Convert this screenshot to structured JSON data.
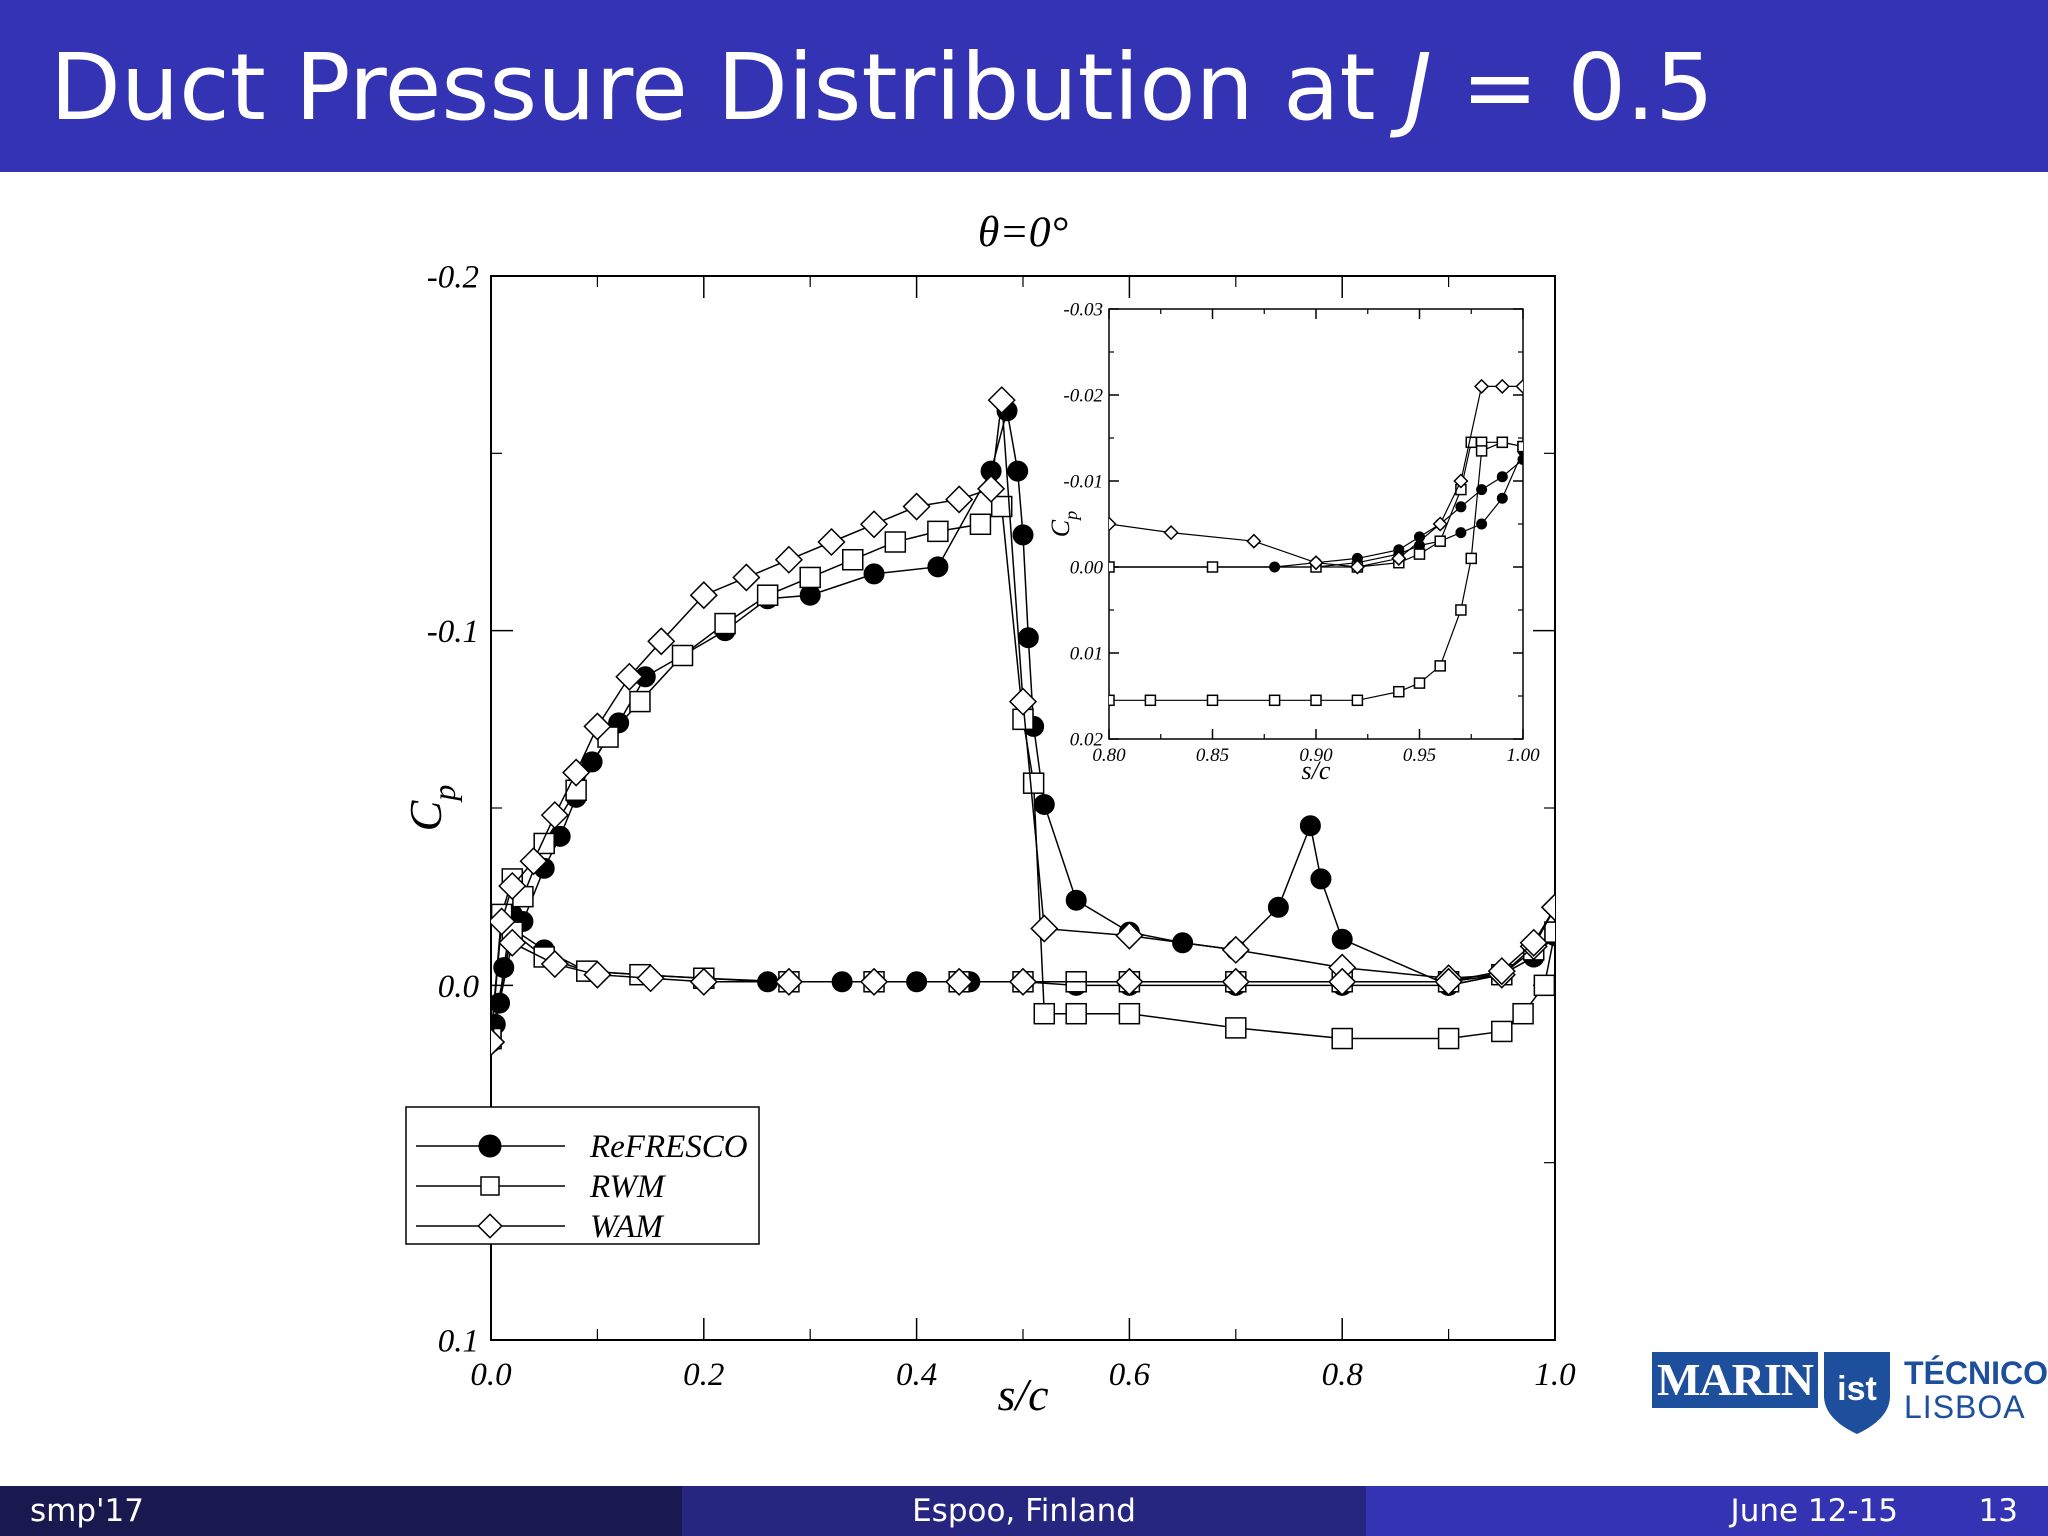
{
  "slide": {
    "title_prefix": "Duct Pressure Distribution at ",
    "title_var": "J",
    "title_suffix": " = 0.5",
    "page_number": "13"
  },
  "footer": {
    "left": "smp'17",
    "center": "Espoo, Finland",
    "date": "June 12-15",
    "page": "13"
  },
  "logos": {
    "marin": "MARIN",
    "tecnico": "TÉCNICO",
    "lisboa": "LISBOA"
  },
  "colors": {
    "title_bar": "#3333b3",
    "footer_left": "#191950",
    "footer_mid": "#262680",
    "footer_right": "#3333b3",
    "logo_blue": "#1d4f9c"
  },
  "chart_data": [
    {
      "type": "line",
      "title": "θ=0°",
      "xlabel": "s/c",
      "ylabel": "Cp",
      "xlim": [
        0.0,
        1.0
      ],
      "ylim": [
        0.1,
        -0.2
      ],
      "y_inverted": true,
      "xticks": [
        "0.0",
        "0.2",
        "0.4",
        "0.6",
        "0.8",
        "1.0"
      ],
      "yticks": [
        "-0.2",
        "-0.1",
        "0.0",
        "0.1"
      ],
      "legend": {
        "placement": "lower-left",
        "entries": [
          "ReFRESCO",
          "RWM",
          "WAM"
        ]
      },
      "series": [
        {
          "name": "ReFRESCO",
          "marker": "filled-circle",
          "upper_x": [
            0.0,
            0.004,
            0.008,
            0.012,
            0.02,
            0.03,
            0.05,
            0.065,
            0.08,
            0.095,
            0.12,
            0.145,
            0.18,
            0.22,
            0.26,
            0.3,
            0.36,
            0.42,
            0.47,
            0.485,
            0.495,
            0.5,
            0.505,
            0.51,
            0.52,
            0.55,
            0.6,
            0.65,
            0.7,
            0.74,
            0.7701,
            0.78,
            0.8,
            0.9,
            0.95,
            0.98,
            1.0
          ],
          "upper_y": [
            0.016,
            0.011,
            0.005,
            -0.005,
            -0.02,
            -0.018,
            -0.033,
            -0.042,
            -0.053,
            -0.063,
            -0.074,
            -0.087,
            -0.093,
            -0.1,
            -0.109,
            -0.11,
            -0.116,
            -0.118,
            -0.145,
            -0.162,
            -0.145,
            -0.127,
            -0.098,
            -0.073,
            -0.051,
            -0.024,
            -0.015,
            -0.012,
            -0.01,
            -0.022,
            -0.045,
            -0.03,
            -0.013,
            0.0,
            -0.003,
            -0.008,
            -0.014
          ],
          "lower_x": [
            0.0,
            0.02,
            0.05,
            0.09,
            0.14,
            0.2,
            0.26,
            0.33,
            0.4,
            0.45,
            0.5,
            0.55,
            0.6,
            0.7,
            0.8,
            0.9,
            0.95,
            0.98,
            1.0
          ],
          "lower_y": [
            0.016,
            -0.016,
            -0.01,
            -0.004,
            -0.003,
            -0.002,
            -0.001,
            -0.001,
            -0.001,
            -0.001,
            -0.001,
            0.0,
            0.0,
            0.0,
            0.0,
            0.0,
            -0.003,
            -0.008,
            -0.014
          ]
        },
        {
          "name": "RWM",
          "marker": "open-square",
          "upper_x": [
            0.0,
            0.01,
            0.02,
            0.03,
            0.05,
            0.08,
            0.11,
            0.14,
            0.18,
            0.22,
            0.26,
            0.3,
            0.34,
            0.38,
            0.42,
            0.46,
            0.48,
            0.5,
            0.51,
            0.52,
            0.55,
            0.6,
            0.7,
            0.8,
            0.9,
            0.95,
            0.97,
            0.99,
            1.0
          ],
          "upper_y": [
            0.015,
            -0.02,
            -0.03,
            -0.025,
            -0.04,
            -0.055,
            -0.07,
            -0.08,
            -0.093,
            -0.102,
            -0.11,
            -0.115,
            -0.12,
            -0.125,
            -0.128,
            -0.13,
            -0.135,
            -0.075,
            -0.057,
            0.008,
            0.008,
            0.008,
            0.012,
            0.015,
            0.015,
            0.013,
            0.008,
            0.0,
            -0.015
          ],
          "lower_x": [
            0.0,
            0.02,
            0.05,
            0.09,
            0.14,
            0.2,
            0.28,
            0.36,
            0.44,
            0.5,
            0.55,
            0.6,
            0.7,
            0.8,
            0.9,
            0.95,
            0.98,
            1.0
          ],
          "lower_y": [
            0.015,
            -0.015,
            -0.008,
            -0.004,
            -0.003,
            -0.002,
            -0.001,
            -0.001,
            -0.001,
            -0.001,
            -0.001,
            -0.001,
            -0.001,
            -0.001,
            -0.001,
            -0.003,
            -0.01,
            -0.015
          ]
        },
        {
          "name": "WAM",
          "marker": "open-diamond",
          "upper_x": [
            0.0,
            0.01,
            0.02,
            0.04,
            0.06,
            0.08,
            0.1,
            0.13,
            0.16,
            0.2,
            0.24,
            0.28,
            0.32,
            0.36,
            0.4,
            0.44,
            0.47,
            0.48,
            0.5,
            0.52,
            0.6,
            0.7,
            0.8,
            0.9,
            0.95,
            0.98,
            1.0
          ],
          "upper_y": [
            0.016,
            -0.018,
            -0.028,
            -0.035,
            -0.048,
            -0.06,
            -0.073,
            -0.087,
            -0.097,
            -0.11,
            -0.115,
            -0.12,
            -0.125,
            -0.13,
            -0.135,
            -0.137,
            -0.14,
            -0.165,
            -0.08,
            -0.016,
            -0.014,
            -0.01,
            -0.005,
            -0.002,
            -0.003,
            -0.011,
            -0.022
          ],
          "lower_x": [
            0.0,
            0.02,
            0.06,
            0.1,
            0.15,
            0.2,
            0.28,
            0.36,
            0.44,
            0.5,
            0.6,
            0.7,
            0.8,
            0.9,
            0.95,
            0.98,
            1.0
          ],
          "lower_y": [
            0.016,
            -0.012,
            -0.006,
            -0.003,
            -0.002,
            -0.001,
            -0.001,
            -0.001,
            -0.001,
            -0.001,
            -0.001,
            -0.001,
            -0.001,
            -0.001,
            -0.004,
            -0.012,
            -0.022
          ]
        }
      ]
    },
    {
      "type": "line",
      "title": "",
      "xlabel": "s/c",
      "ylabel": "Cp",
      "xlim": [
        0.8,
        1.0
      ],
      "ylim": [
        0.02,
        -0.03
      ],
      "y_inverted": true,
      "xticks": [
        "0.80",
        "0.85",
        "0.90",
        "0.95",
        "1.00"
      ],
      "yticks": [
        "-0.03",
        "-0.02",
        "-0.01",
        "0.00",
        "0.01",
        "0.02"
      ],
      "series": [
        {
          "name": "ReFRESCO",
          "marker": "filled-circle",
          "upper_x": [
            0.8,
            0.85,
            0.88,
            0.9,
            0.92,
            0.94,
            0.95,
            0.96,
            0.97,
            0.98,
            0.99,
            1.0
          ],
          "upper_y": [
            0.0,
            0.0,
            0.0,
            -0.0005,
            -0.001,
            -0.002,
            -0.0035,
            -0.005,
            -0.007,
            -0.009,
            -0.0105,
            -0.0125
          ],
          "lower_x": [
            0.8,
            0.85,
            0.9,
            0.92,
            0.94,
            0.95,
            0.96,
            0.97,
            0.98,
            0.99,
            1.0
          ],
          "lower_y": [
            0.0,
            0.0,
            0.0,
            -0.0005,
            -0.0015,
            -0.0025,
            -0.003,
            -0.004,
            -0.005,
            -0.008,
            -0.0135
          ]
        },
        {
          "name": "RWM",
          "marker": "open-square",
          "upper_x": [
            0.8,
            0.85,
            0.9,
            0.92,
            0.94,
            0.95,
            0.96,
            0.97,
            0.975,
            0.98,
            0.99,
            1.0
          ],
          "upper_y": [
            0.0,
            0.0,
            0.0,
            0.0,
            -0.0005,
            -0.0015,
            -0.003,
            -0.009,
            -0.0145,
            -0.0145,
            -0.0145,
            -0.014
          ],
          "lower_x": [
            0.8,
            0.82,
            0.85,
            0.88,
            0.9,
            0.92,
            0.94,
            0.95,
            0.96,
            0.97,
            0.975,
            0.98,
            0.99,
            1.0
          ],
          "lower_y": [
            0.0155,
            0.0155,
            0.0155,
            0.0155,
            0.0155,
            0.0155,
            0.0145,
            0.0135,
            0.0115,
            0.005,
            -0.001,
            -0.0135,
            -0.0145,
            -0.014
          ]
        },
        {
          "name": "WAM",
          "marker": "open-diamond",
          "x": [
            0.8,
            0.83,
            0.87,
            0.9,
            0.92,
            0.94,
            0.96,
            0.97,
            0.98,
            0.99,
            1.0
          ],
          "y": [
            -0.005,
            -0.004,
            -0.003,
            -0.0005,
            0.0,
            -0.001,
            -0.005,
            -0.01,
            -0.021,
            -0.021,
            -0.021
          ]
        }
      ]
    }
  ]
}
